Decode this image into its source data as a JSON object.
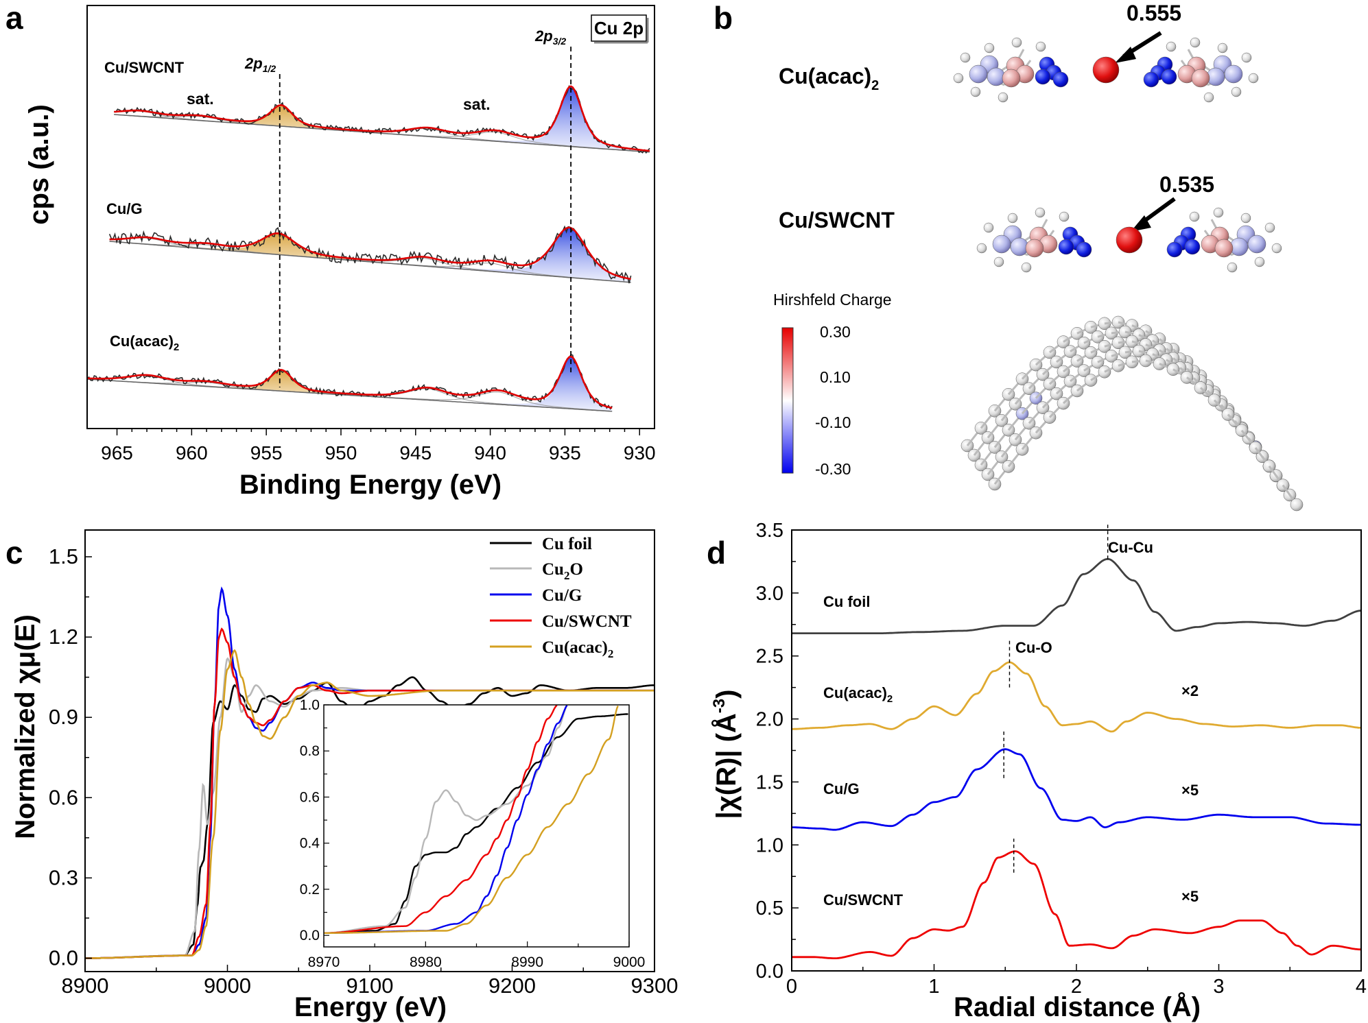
{
  "panel_labels": {
    "a": "a",
    "b": "b",
    "c": "c",
    "d": "d"
  },
  "colors": {
    "data_black": "#2a2a2a",
    "fit_red": "#e00000",
    "envelope_gray": "#999999",
    "fill_gold": "#e0a93a",
    "fill_blue": "#3050e0",
    "cu_foil": "#000000",
    "cu2o": "#b8b8b8",
    "cug": "#0000ee",
    "cuswcnt": "#ee0000",
    "cuacac": "#d4a020",
    "d_cufoil": "#404040",
    "d_cuacac": "#e0aa30",
    "d_cug": "#0000ee",
    "d_cuswcnt": "#ee0000"
  },
  "chart_data": [
    {
      "id": "a",
      "type": "line",
      "title": "",
      "box_label": "Cu 2p",
      "xlabel": "Binding Energy (eV)",
      "ylabel": "cps (a.u.)",
      "xlim": [
        967,
        929
      ],
      "xticks": [
        965,
        960,
        955,
        950,
        945,
        940,
        935,
        930
      ],
      "peak_labels": [
        {
          "text": "2p",
          "sub": "1/2",
          "x": 954.1
        },
        {
          "text": "2p",
          "sub": "3/2",
          "x": 934.6
        }
      ],
      "sat_labels": [
        "sat.",
        "sat."
      ],
      "series": [
        {
          "name": "Cu/SWCNT",
          "peaks": [
            {
              "pos": 954.0,
              "h": 1.0
            },
            {
              "pos": 934.6,
              "h": 2.9
            }
          ],
          "sats": [
            {
              "pos": 963.5,
              "h": 0.25
            },
            {
              "pos": 959.5,
              "h": 0.2
            },
            {
              "pos": 944.2,
              "h": 0.38
            },
            {
              "pos": 939.7,
              "h": 0.45
            }
          ]
        },
        {
          "name": "Cu/G",
          "peaks": [
            {
              "pos": 954.2,
              "h": 1.0
            },
            {
              "pos": 934.7,
              "h": 2.4
            }
          ],
          "sats": [
            {
              "pos": 963.0,
              "h": 0.3
            },
            {
              "pos": 959.0,
              "h": 0.2
            },
            {
              "pos": 944.5,
              "h": 0.38
            },
            {
              "pos": 940.0,
              "h": 0.4
            }
          ]
        },
        {
          "name": "Cu(acac)",
          "name_sub": "2",
          "peaks": [
            {
              "pos": 954.0,
              "h": 1.0
            },
            {
              "pos": 934.6,
              "h": 2.5
            }
          ],
          "sats": [
            {
              "pos": 963.0,
              "h": 0.35
            },
            {
              "pos": 959.0,
              "h": 0.2
            },
            {
              "pos": 944.2,
              "h": 0.55
            },
            {
              "pos": 939.5,
              "h": 0.6
            }
          ]
        }
      ]
    },
    {
      "id": "c",
      "type": "line",
      "xlabel": "Energy (eV)",
      "ylabel": "Normalized χμ(E)",
      "xlim": [
        8900,
        9300
      ],
      "ylim": [
        -0.05,
        1.6
      ],
      "xticks": [
        8900,
        9000,
        9100,
        9200,
        9300
      ],
      "yticks": [
        0.0,
        0.3,
        0.6,
        0.9,
        1.2,
        1.5
      ],
      "legend": [
        "Cu foil",
        "Cu2O",
        "Cu/G",
        "Cu/SWCNT",
        "Cu(acac)2"
      ],
      "legend_display": [
        {
          "text": "Cu foil",
          "sub": ""
        },
        {
          "text": "Cu",
          "sub": "2",
          "after": "O"
        },
        {
          "text": "Cu/G",
          "sub": ""
        },
        {
          "text": "Cu/SWCNT",
          "sub": ""
        },
        {
          "text": "Cu(acac)",
          "sub": "2"
        }
      ],
      "series": [
        {
          "name": "Cu foil",
          "x": [
            8900,
            8970,
            8976,
            8979,
            8981,
            8983,
            8986,
            8990,
            8995,
            9000,
            9005,
            9010,
            9015,
            9020,
            9025,
            9030,
            9040,
            9050,
            9060,
            9070,
            9080,
            9090,
            9100,
            9110,
            9120,
            9130,
            9140,
            9150,
            9160,
            9170,
            9180,
            9190,
            9200,
            9210,
            9220,
            9240,
            9260,
            9280,
            9300
          ],
          "y": [
            0,
            0.01,
            0.05,
            0.2,
            0.34,
            0.36,
            0.5,
            0.88,
            0.96,
            0.93,
            1.02,
            0.98,
            0.93,
            0.92,
            0.97,
            0.98,
            0.95,
            0.97,
            1.0,
            1.03,
            0.96,
            0.92,
            0.96,
            0.98,
            1.02,
            1.05,
            1.0,
            0.96,
            0.93,
            0.95,
            0.99,
            1.01,
            0.98,
            0.99,
            1.02,
            1.0,
            1.01,
            1.01,
            1.02
          ]
        },
        {
          "name": "Cu2O",
          "x": [
            8900,
            8970,
            8977,
            8980,
            8983,
            8986,
            8990,
            8995,
            9000,
            9005,
            9010,
            9015,
            9020,
            9030,
            9040,
            9050,
            9060,
            9080,
            9100,
            9150,
            9200,
            9300
          ],
          "y": [
            0,
            0.01,
            0.1,
            0.4,
            0.65,
            0.5,
            0.62,
            0.9,
            1.12,
            1.05,
            0.92,
            0.98,
            1.02,
            0.96,
            0.94,
            0.98,
            1.0,
            1.01,
            1.0,
            1.0,
            1.0,
            1.0
          ]
        },
        {
          "name": "Cu/G",
          "x": [
            8900,
            8975,
            8980,
            8985,
            8988,
            8991,
            8994,
            8996,
            9000,
            9005,
            9010,
            9015,
            9020,
            9025,
            9030,
            9040,
            9050,
            9060,
            9070,
            9080,
            9100,
            9150,
            9200,
            9300
          ],
          "y": [
            0,
            0.01,
            0.05,
            0.15,
            0.45,
            0.95,
            1.32,
            1.38,
            1.28,
            1.08,
            0.95,
            0.9,
            0.86,
            0.85,
            0.88,
            0.96,
            1.01,
            1.03,
            1.01,
            1.0,
            1.0,
            1.0,
            1.0,
            1.0
          ]
        },
        {
          "name": "Cu/SWCNT",
          "x": [
            8900,
            8975,
            8980,
            8985,
            8988,
            8991,
            8994,
            8996,
            9000,
            9005,
            9010,
            9015,
            9020,
            9025,
            9030,
            9040,
            9050,
            9060,
            9070,
            9080,
            9100,
            9150,
            9200,
            9300
          ],
          "y": [
            0,
            0.01,
            0.08,
            0.2,
            0.5,
            0.95,
            1.2,
            1.23,
            1.18,
            1.05,
            0.95,
            0.9,
            0.88,
            0.87,
            0.89,
            0.96,
            1.01,
            1.02,
            1.0,
            0.99,
            1.0,
            1.0,
            1.0,
            1.0
          ]
        },
        {
          "name": "Cu(acac)2",
          "x": [
            8900,
            8975,
            8980,
            8985,
            8990,
            8995,
            9000,
            9005,
            9010,
            9015,
            9020,
            9025,
            9030,
            9040,
            9050,
            9060,
            9070,
            9080,
            9100,
            9150,
            9200,
            9300
          ],
          "y": [
            0,
            0.01,
            0.03,
            0.12,
            0.45,
            0.85,
            1.08,
            1.15,
            1.05,
            0.95,
            0.88,
            0.83,
            0.82,
            0.9,
            0.98,
            1.02,
            1.03,
            1.0,
            0.98,
            1.0,
            1.0,
            1.0
          ]
        }
      ],
      "inset": {
        "xlim": [
          8970,
          9000
        ],
        "ylim": [
          -0.05,
          1.0
        ],
        "xticks": [
          8970,
          8980,
          8990,
          9000
        ],
        "yticks": [
          0.0,
          0.2,
          0.4,
          0.6,
          0.8,
          1.0
        ],
        "series": [
          {
            "name": "Cu foil",
            "x": [
              8970,
              8975,
              8977,
              8978,
              8979,
              8980,
              8981,
              8982,
              8983,
              8984,
              8985,
              8987,
              8989,
              8991,
              8993,
              8995,
              8997,
              9000
            ],
            "y": [
              0.01,
              0.02,
              0.05,
              0.15,
              0.3,
              0.35,
              0.36,
              0.36,
              0.38,
              0.44,
              0.47,
              0.55,
              0.64,
              0.75,
              0.86,
              0.94,
              0.95,
              0.96
            ]
          },
          {
            "name": "Cu2O",
            "x": [
              8970,
              8976,
              8978,
              8979,
              8980,
              8981,
              8982,
              8983,
              8984,
              8985,
              8986,
              8988,
              8990,
              8992,
              8993,
              8994
            ],
            "y": [
              0.01,
              0.04,
              0.12,
              0.25,
              0.42,
              0.58,
              0.63,
              0.58,
              0.52,
              0.5,
              0.52,
              0.57,
              0.65,
              0.78,
              0.9,
              1.0
            ]
          },
          {
            "name": "Cu/G",
            "x": [
              8970,
              8980,
              8983,
              8985,
              8986,
              8987,
              8988,
              8989,
              8990,
              8991,
              8992,
              8993,
              8994
            ],
            "y": [
              0.01,
              0.02,
              0.05,
              0.1,
              0.17,
              0.26,
              0.38,
              0.5,
              0.61,
              0.72,
              0.83,
              0.92,
              1.0
            ]
          },
          {
            "name": "Cu/SWCNT",
            "x": [
              8970,
              8978,
              8980,
              8982,
              8984,
              8986,
              8987,
              8988,
              8989,
              8990,
              8991,
              8992,
              8993
            ],
            "y": [
              0.01,
              0.04,
              0.1,
              0.17,
              0.24,
              0.35,
              0.42,
              0.5,
              0.6,
              0.72,
              0.84,
              0.94,
              1.0
            ]
          },
          {
            "name": "Cu(acac)2",
            "x": [
              8970,
              8982,
              8984,
              8986,
              8988,
              8990,
              8992,
              8994,
              8996,
              8998,
              8999
            ],
            "y": [
              0.01,
              0.02,
              0.05,
              0.13,
              0.25,
              0.35,
              0.47,
              0.57,
              0.7,
              0.85,
              1.0
            ]
          }
        ]
      }
    },
    {
      "id": "d",
      "type": "line",
      "xlabel": "Radial distance (Å)",
      "ylabel": "|χ(R)| (Å⁻³)",
      "xlim": [
        0,
        4
      ],
      "ylim": [
        0,
        3.5
      ],
      "xticks": [
        0,
        1,
        2,
        3,
        4
      ],
      "yticks": [
        0.0,
        0.5,
        1.0,
        1.5,
        2.0,
        2.5,
        3.0,
        3.5
      ],
      "annotations": [
        {
          "text": "Cu-Cu",
          "x": 2.22
        },
        {
          "text": "Cu-O",
          "x": 1.53
        }
      ],
      "scale_labels": [
        "×2",
        "×5",
        "×5"
      ],
      "series": [
        {
          "name": "Cu foil",
          "label": "Cu foil",
          "x": [
            0,
            0.3,
            0.6,
            0.9,
            1.2,
            1.5,
            1.7,
            1.9,
            2.05,
            2.22,
            2.4,
            2.55,
            2.7,
            2.85,
            3.0,
            3.2,
            3.4,
            3.6,
            3.8,
            4.0
          ],
          "y": [
            2.68,
            2.68,
            2.68,
            2.69,
            2.7,
            2.74,
            2.74,
            2.9,
            3.15,
            3.27,
            3.1,
            2.85,
            2.7,
            2.73,
            2.76,
            2.77,
            2.76,
            2.74,
            2.78,
            2.86
          ]
        },
        {
          "name": "Cu(acac)2",
          "label": "Cu(acac)",
          "label_sub": "2",
          "x": [
            0,
            0.2,
            0.4,
            0.55,
            0.7,
            0.85,
            1.0,
            1.15,
            1.3,
            1.42,
            1.53,
            1.65,
            1.78,
            1.9,
            2.0,
            2.1,
            2.25,
            2.35,
            2.5,
            2.7,
            2.9,
            3.1,
            3.3,
            3.5,
            3.7,
            3.85,
            4.0
          ],
          "y": [
            1.92,
            1.93,
            1.95,
            1.96,
            1.92,
            2.0,
            2.1,
            2.03,
            2.2,
            2.38,
            2.45,
            2.36,
            2.1,
            1.95,
            1.96,
            1.98,
            1.9,
            1.98,
            2.05,
            2.0,
            1.96,
            1.94,
            1.95,
            1.93,
            1.95,
            1.95,
            1.93
          ]
        },
        {
          "name": "Cu/G",
          "label": "Cu/G",
          "x": [
            0,
            0.2,
            0.3,
            0.5,
            0.7,
            0.85,
            1.0,
            1.15,
            1.3,
            1.5,
            1.6,
            1.75,
            1.9,
            2.0,
            2.1,
            2.2,
            2.3,
            2.5,
            2.75,
            3.0,
            3.25,
            3.5,
            3.75,
            4.0
          ],
          "y": [
            1.14,
            1.13,
            1.12,
            1.18,
            1.15,
            1.24,
            1.34,
            1.38,
            1.6,
            1.76,
            1.72,
            1.45,
            1.2,
            1.19,
            1.22,
            1.14,
            1.18,
            1.22,
            1.2,
            1.24,
            1.22,
            1.22,
            1.17,
            1.16
          ]
        },
        {
          "name": "Cu/SWCNT",
          "label": "Cu/SWCNT",
          "x": [
            0,
            0.15,
            0.3,
            0.55,
            0.7,
            0.85,
            1.0,
            1.1,
            1.2,
            1.35,
            1.45,
            1.57,
            1.7,
            1.85,
            1.95,
            2.1,
            2.25,
            2.4,
            2.55,
            2.8,
            3.0,
            3.15,
            3.3,
            3.45,
            3.55,
            3.65,
            3.8,
            4.0
          ],
          "y": [
            0.11,
            0.11,
            0.1,
            0.15,
            0.12,
            0.26,
            0.33,
            0.32,
            0.35,
            0.7,
            0.9,
            0.95,
            0.85,
            0.45,
            0.2,
            0.21,
            0.18,
            0.28,
            0.33,
            0.3,
            0.35,
            0.4,
            0.4,
            0.3,
            0.2,
            0.13,
            0.2,
            0.17
          ]
        }
      ]
    }
  ],
  "panel_b": {
    "molecule1": {
      "name": "Cu(acac)",
      "sub": "2",
      "charge": "0.555"
    },
    "molecule2": {
      "name": "Cu/SWCNT",
      "charge": "0.535"
    },
    "colorbar": {
      "title": "Hirshfeld Charge",
      "ticks": [
        "0.30",
        "0.10",
        "-0.10",
        "-0.30"
      ]
    }
  }
}
